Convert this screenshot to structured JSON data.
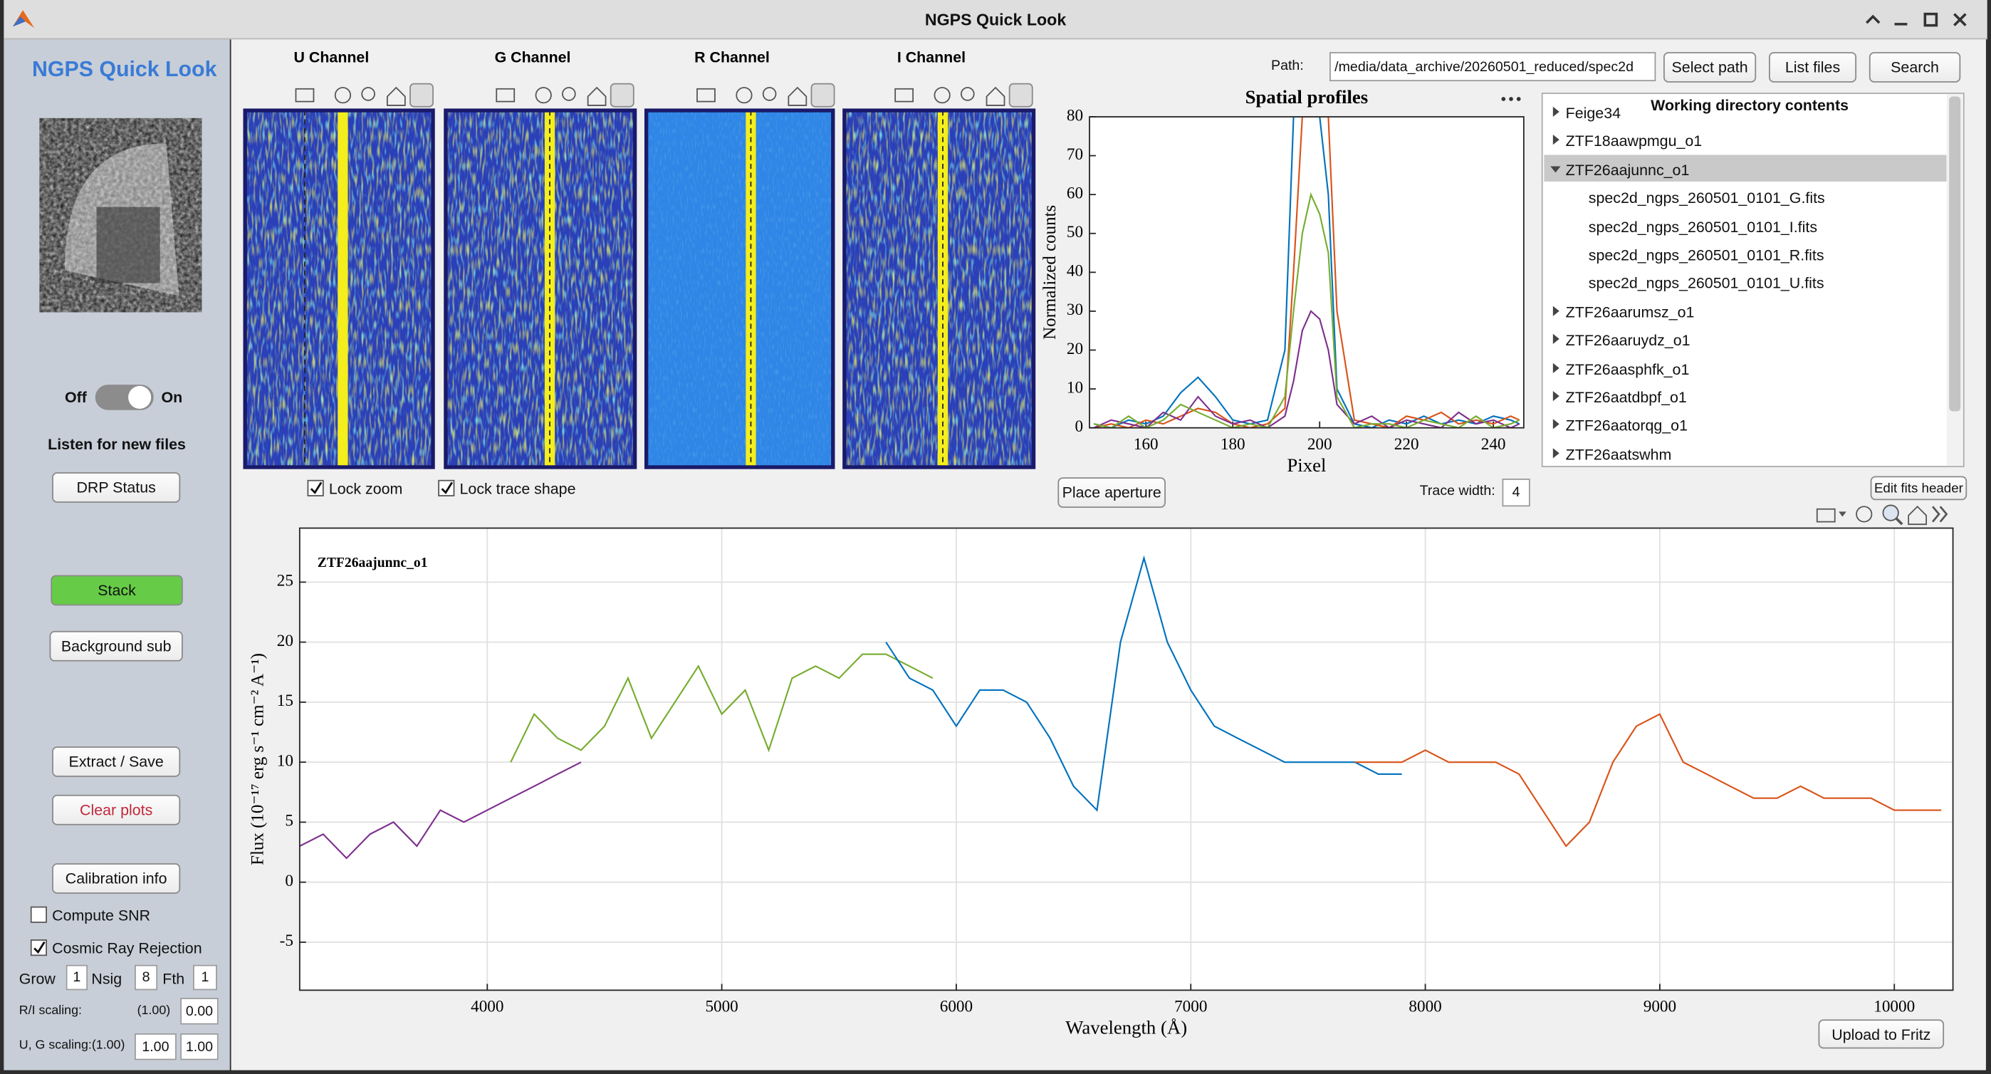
{
  "window": {
    "title": "NGPS Quick Look"
  },
  "sidebar": {
    "title": "NGPS Quick Look",
    "toggle": {
      "off": "Off",
      "on": "On"
    },
    "listen_label": "Listen for new files",
    "drp_status": "DRP Status",
    "stack": "Stack",
    "background_sub": "Background sub",
    "extract_save": "Extract / Save",
    "clear_plots": "Clear plots",
    "calibration_info": "Calibration info",
    "compute_snr": {
      "label": "Compute SNR",
      "checked": false
    },
    "cosmic_ray": {
      "label": "Cosmic Ray Rejection",
      "checked": true
    },
    "grow": {
      "label": "Grow",
      "value": "1"
    },
    "nsig": {
      "label": "Nsig",
      "value": "8"
    },
    "fth": {
      "label": "Fth",
      "value": "1"
    },
    "ri_scaling": {
      "label": "R/I scaling:",
      "default": "(1.00)",
      "value": "0.00"
    },
    "ug_scaling": {
      "label": "U, G scaling:(1.00)",
      "values": [
        "1.00",
        "1.00"
      ]
    }
  },
  "channels": {
    "titles": [
      "U Channel",
      "G Channel",
      "R Channel",
      "I Channel"
    ],
    "lock_zoom": {
      "label": "Lock zoom",
      "checked": true
    },
    "lock_trace_shape": {
      "label": "Lock trace shape",
      "checked": true
    }
  },
  "files": {
    "path_label": "Path:",
    "path": "/media/data_archive/20260501_reduced/spec2d",
    "select_path": "Select path",
    "list_files": "List files",
    "search": "Search",
    "title": "Working directory contents",
    "tree": [
      {
        "label": "Feige34",
        "expanded": false
      },
      {
        "label": "ZTF18aawpmgu_o1",
        "expanded": false
      },
      {
        "label": "ZTF26aajunnc_o1",
        "expanded": true,
        "selected": true,
        "children": [
          "spec2d_ngps_260501_0101_G.fits",
          "spec2d_ngps_260501_0101_I.fits",
          "spec2d_ngps_260501_0101_R.fits",
          "spec2d_ngps_260501_0101_U.fits"
        ]
      },
      {
        "label": "ZTF26aarumsz_o1",
        "expanded": false
      },
      {
        "label": "ZTF26aaruydz_o1",
        "expanded": false
      },
      {
        "label": "ZTF26aasphfk_o1",
        "expanded": false
      },
      {
        "label": "ZTF26aatdbpf_o1",
        "expanded": false
      },
      {
        "label": "ZTF26aatorqg_o1",
        "expanded": false
      },
      {
        "label": "ZTF26aatswhm",
        "expanded": false
      }
    ]
  },
  "aperture": {
    "place_aperture": "Place aperture",
    "trace_width_label": "Trace width:",
    "trace_width": "4",
    "edit_fits_header": "Edit fits header"
  },
  "upload": "Upload to Fritz",
  "chart_data": [
    {
      "type": "line",
      "title": "Spatial profiles",
      "xlabel": "Pixel",
      "ylabel": "Normalized counts",
      "grid": false,
      "xlim": [
        147,
        247
      ],
      "ylim": [
        0,
        80
      ],
      "xticks": [
        160,
        180,
        200,
        220,
        240
      ],
      "yticks": [
        0,
        10,
        20,
        30,
        40,
        50,
        60,
        70,
        80
      ],
      "x": [
        148,
        152,
        156,
        160,
        164,
        168,
        172,
        176,
        180,
        184,
        188,
        192,
        194,
        196,
        198,
        200,
        202,
        204,
        208,
        212,
        216,
        220,
        224,
        228,
        232,
        236,
        240,
        244,
        246
      ],
      "series": [
        {
          "color": "#0072bd",
          "values": [
            1,
            0,
            2,
            1,
            3,
            9,
            13,
            8,
            2,
            1,
            2,
            20,
            80,
            80,
            80,
            80,
            60,
            10,
            1,
            0,
            2,
            1,
            3,
            1,
            2,
            1,
            3,
            2,
            1
          ]
        },
        {
          "color": "#d95319",
          "values": [
            0,
            1,
            0,
            2,
            1,
            3,
            5,
            4,
            1,
            0,
            1,
            5,
            40,
            80,
            80,
            80,
            80,
            30,
            2,
            1,
            0,
            3,
            2,
            4,
            1,
            2,
            1,
            3,
            2
          ]
        },
        {
          "color": "#7e2f8e",
          "values": [
            0,
            2,
            1,
            0,
            4,
            2,
            8,
            3,
            1,
            2,
            0,
            3,
            12,
            25,
            30,
            28,
            20,
            6,
            1,
            3,
            0,
            2,
            1,
            0,
            4,
            1,
            2,
            0,
            1
          ]
        },
        {
          "color": "#77ac30",
          "values": [
            1,
            0,
            3,
            0,
            2,
            6,
            4,
            2,
            0,
            1,
            0,
            8,
            30,
            50,
            60,
            55,
            45,
            8,
            0,
            1,
            1,
            0,
            2,
            1,
            0,
            3,
            0,
            1,
            2
          ]
        }
      ]
    },
    {
      "type": "line",
      "annotation": "ZTF26aajunnc_o1",
      "xlabel": "Wavelength (Å)",
      "ylabel": "Flux (10⁻¹⁷ erg s⁻¹ cm⁻² A⁻¹)",
      "grid": true,
      "xlim": [
        3200,
        10250
      ],
      "ylim": [
        -9,
        29.5
      ],
      "xticks": [
        4000,
        5000,
        6000,
        7000,
        8000,
        9000,
        10000
      ],
      "yticks": [
        -5,
        0,
        5,
        10,
        15,
        20,
        25
      ],
      "x": [
        3200,
        3300,
        3400,
        3500,
        3600,
        3700,
        3800,
        3900,
        4000,
        4100,
        4200,
        4300,
        4400,
        4500,
        4600,
        4700,
        4800,
        4900,
        5000,
        5100,
        5200,
        5300,
        5400,
        5500,
        5600,
        5700,
        5800,
        5900,
        6000,
        6100,
        6200,
        6300,
        6400,
        6500,
        6600,
        6700,
        6800,
        6900,
        7000,
        7100,
        7200,
        7300,
        7400,
        7500,
        7600,
        7700,
        7800,
        7900,
        8000,
        8100,
        8200,
        8300,
        8400,
        8500,
        8600,
        8700,
        8800,
        8900,
        9000,
        9100,
        9200,
        9300,
        9400,
        9500,
        9600,
        9700,
        9800,
        9900,
        10000,
        10100,
        10200
      ],
      "series": [
        {
          "color": "#7e2f8e",
          "values": [
            3,
            4,
            2,
            4,
            5,
            3,
            6,
            5,
            6,
            7,
            8,
            9,
            10,
            null,
            null,
            null,
            null,
            null,
            null,
            null,
            null,
            null,
            null,
            null,
            null,
            null,
            null,
            null,
            null,
            null,
            null,
            null,
            null,
            null,
            null,
            null,
            null,
            null,
            null,
            null,
            null,
            null,
            null,
            null,
            null,
            null,
            null,
            null,
            null,
            null,
            null,
            null,
            null,
            null,
            null,
            null,
            null,
            null,
            null,
            null,
            null,
            null,
            null,
            null,
            null,
            null,
            null,
            null,
            null,
            null,
            null
          ]
        },
        {
          "color": "#77ac30",
          "values": [
            null,
            null,
            null,
            null,
            null,
            null,
            null,
            null,
            null,
            10,
            14,
            12,
            11,
            13,
            17,
            12,
            15,
            18,
            14,
            16,
            11,
            17,
            18,
            17,
            19,
            19,
            18,
            17,
            null,
            null,
            null,
            null,
            null,
            null,
            null,
            null,
            null,
            null,
            null,
            null,
            null,
            null,
            null,
            null,
            null,
            null,
            null,
            null,
            null,
            null,
            null,
            null,
            null,
            null,
            null,
            null,
            null,
            null,
            null,
            null,
            null,
            null,
            null,
            null,
            null,
            null,
            null,
            null,
            null,
            null,
            null
          ]
        },
        {
          "color": "#0072bd",
          "values": [
            null,
            null,
            null,
            null,
            null,
            null,
            null,
            null,
            null,
            null,
            null,
            null,
            null,
            null,
            null,
            null,
            null,
            null,
            null,
            null,
            null,
            null,
            null,
            null,
            null,
            20,
            17,
            16,
            13,
            16,
            16,
            15,
            12,
            8,
            6,
            20,
            27,
            20,
            16,
            13,
            12,
            11,
            10,
            10,
            10,
            10,
            9,
            9,
            null,
            null,
            null,
            null,
            null,
            null,
            null,
            null,
            null,
            null,
            null,
            null,
            null,
            null,
            null,
            null,
            null,
            null,
            null,
            null,
            null,
            null,
            null
          ]
        },
        {
          "color": "#d95319",
          "values": [
            null,
            null,
            null,
            null,
            null,
            null,
            null,
            null,
            null,
            null,
            null,
            null,
            null,
            null,
            null,
            null,
            null,
            null,
            null,
            null,
            null,
            null,
            null,
            null,
            null,
            null,
            null,
            null,
            null,
            null,
            null,
            null,
            null,
            null,
            null,
            null,
            null,
            null,
            null,
            null,
            null,
            null,
            null,
            null,
            null,
            10,
            10,
            10,
            11,
            10,
            10,
            10,
            9,
            6,
            3,
            5,
            10,
            13,
            14,
            10,
            9,
            8,
            7,
            7,
            8,
            7,
            7,
            7,
            6,
            6,
            6
          ]
        }
      ]
    }
  ]
}
